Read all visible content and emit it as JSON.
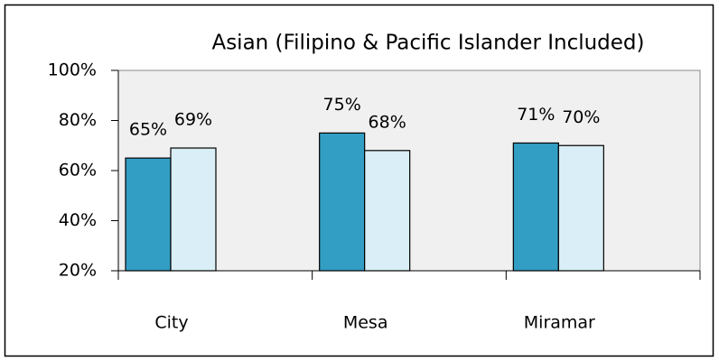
{
  "chart_data": {
    "type": "bar",
    "title": "Asian (Filipino & Pacific Islander Included)",
    "categories": [
      "City",
      "Mesa",
      "Miramar"
    ],
    "series": [
      {
        "color": "#339ec4",
        "values": [
          65,
          75,
          71
        ],
        "value_labels": [
          "65%",
          "75%",
          "71%"
        ]
      },
      {
        "color": "#d9eef6",
        "values": [
          69,
          68,
          70
        ],
        "value_labels": [
          "69%",
          "68%",
          "70%"
        ]
      }
    ],
    "ylim": [
      20,
      100
    ],
    "yticks": [
      {
        "value": 20,
        "label": "20%"
      },
      {
        "value": 40,
        "label": "40%"
      },
      {
        "value": 60,
        "label": "60%"
      },
      {
        "value": 80,
        "label": "80%"
      },
      {
        "value": 100,
        "label": "100%"
      }
    ],
    "plot_background": "#f0f0f0"
  }
}
